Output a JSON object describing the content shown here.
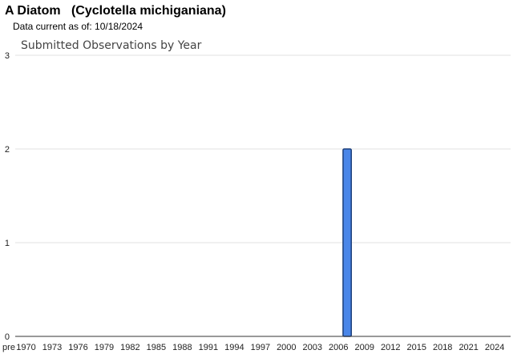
{
  "header": {
    "title": "A Diatom   (Cyclotella michiganiana)",
    "data_current": "Data current as of: 10/18/2024"
  },
  "chart_data": {
    "type": "bar",
    "title": "Submitted Observations by Year",
    "xlabel": "",
    "ylabel": "",
    "ylim": [
      0,
      3
    ],
    "y_ticks": [
      0,
      1,
      2,
      3
    ],
    "x_tick_labels": [
      "pre",
      "1970",
      "1973",
      "1976",
      "1979",
      "1982",
      "1985",
      "1988",
      "1991",
      "1994",
      "1997",
      "2000",
      "2003",
      "2006",
      "2009",
      "2012",
      "2015",
      "2018",
      "2021",
      "2024"
    ],
    "categories": [
      "2007"
    ],
    "values": [
      2
    ],
    "grid": true,
    "legend": "none",
    "colors": {
      "bar_fill": "#4a86e8",
      "bar_stroke": "#1c3f7a",
      "grid": "#e0e0e0",
      "axis": "#333333"
    }
  }
}
